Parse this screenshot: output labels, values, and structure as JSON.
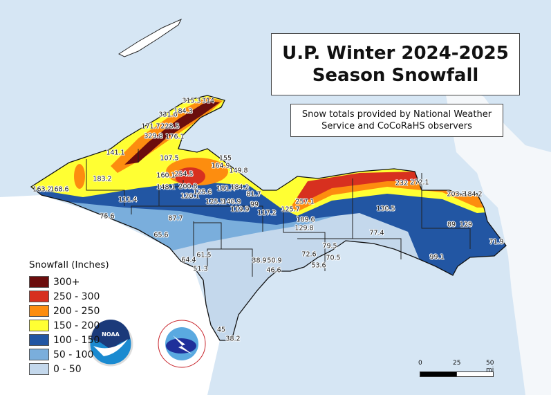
{
  "title": {
    "line1": "U.P. Winter 2024-2025",
    "line2": "Season Snowfall"
  },
  "subtitle": {
    "line1": "Snow totals provided by National Weather",
    "line2": "Service and CoCoRaHS observers"
  },
  "legend": {
    "title": "Snowfall (Inches)",
    "items": [
      {
        "label": "300+",
        "color": "#6b0d0d"
      },
      {
        "label": "250 - 300",
        "color": "#d7301f"
      },
      {
        "label": "200 - 250",
        "color": "#fd8d0f"
      },
      {
        "label": "150 - 200",
        "color": "#ffff33"
      },
      {
        "label": "100 - 150",
        "color": "#2256a3"
      },
      {
        "label": "50 - 100",
        "color": "#7aaedc"
      },
      {
        "label": "0 - 50",
        "color": "#c4d8ec"
      }
    ]
  },
  "scale_bar": {
    "ticks": [
      "0",
      "25",
      "50 mi"
    ]
  },
  "logos": {
    "noaa": "NOAA",
    "nws": "NATIONAL WEATHER SERVICE"
  },
  "stations": [
    "315.3",
    "314",
    "331.6",
    "184.3",
    "171.7",
    "228.5",
    "329.8",
    "176.1",
    "141.1",
    "107.5",
    "155",
    "164.9",
    "149.8",
    "160.1",
    "254.5",
    "183.2",
    "163.2",
    "168.6",
    "148.1",
    "200.8",
    "120.1",
    "125.6",
    "181.4",
    "184.2",
    "81.7",
    "111.4",
    "125.5",
    "140.9",
    "99",
    "119.9",
    "117.2",
    "125.7",
    "257.1",
    "189.6",
    "129.8",
    "75.6",
    "87.7",
    "65.6",
    "232",
    "272.1",
    "130.5",
    "203.3",
    "184.2",
    "89",
    "129",
    "77.4",
    "71.9",
    "99.1",
    "79.5",
    "72.6",
    "70.5",
    "53.6",
    "61.5",
    "64.4",
    "51.3",
    "38.9",
    "50.9",
    "46.6",
    "45",
    "38.2"
  ]
}
